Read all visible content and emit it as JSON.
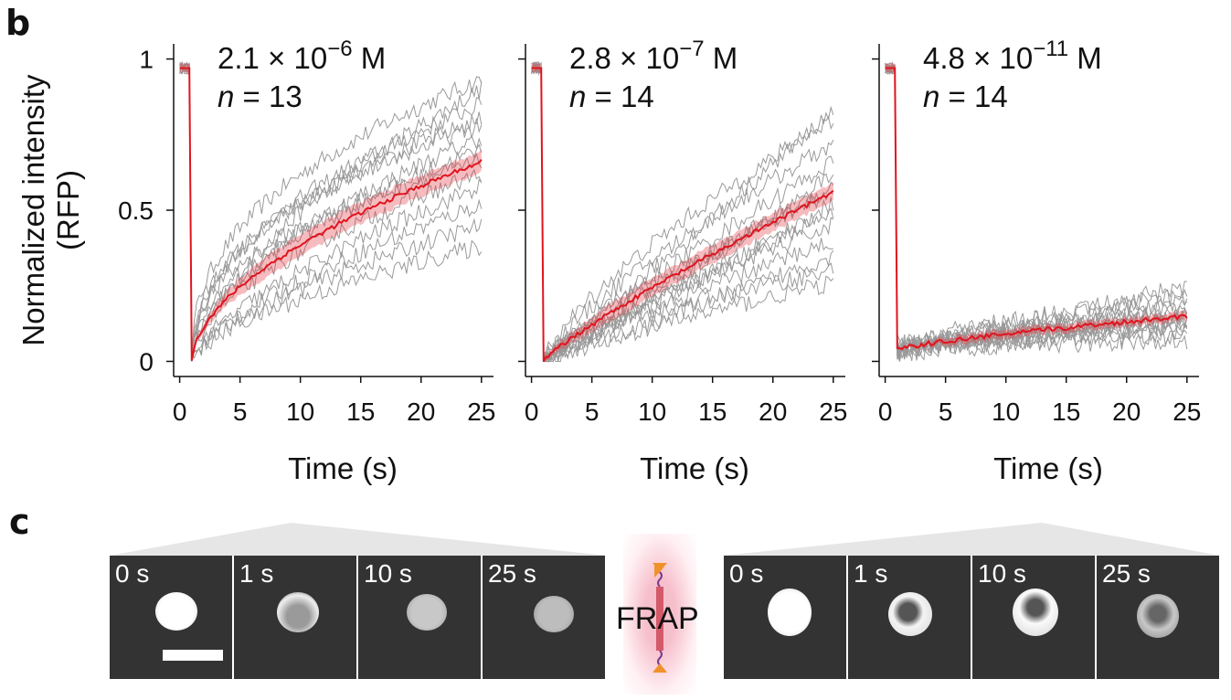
{
  "panel_b_label": "b",
  "panel_c_label": "c",
  "chart_data": [
    {
      "type": "line",
      "concentration_text": "2.1 × 10",
      "concentration_exp": "−6",
      "concentration_unit": " M",
      "n_text": "n",
      "n_value": " = 13",
      "xlabel": "Time (s)",
      "ylabel": [
        "Normalized intensity",
        "(RFP)"
      ],
      "xlim": [
        -0.5,
        26
      ],
      "ylim": [
        -0.05,
        1.05
      ],
      "xticks": [
        0,
        5,
        10,
        15,
        20,
        25
      ],
      "yticks": [
        0,
        0.5,
        1
      ],
      "yticklabels": [
        "0",
        "0.5",
        "1"
      ],
      "prebleach": 0.97,
      "mean_end": 0.66,
      "mean_shape": 0.55,
      "band": 0.035,
      "individual_ends": [
        0.93,
        0.9,
        0.85,
        0.8,
        0.78,
        0.74,
        0.7,
        0.66,
        0.62,
        0.58,
        0.52,
        0.45,
        0.38
      ],
      "mean_color": "#e0141e",
      "trace_color": "#999999"
    },
    {
      "type": "line",
      "concentration_text": "2.8 × 10",
      "concentration_exp": "−7",
      "concentration_unit": " M",
      "n_text": "n",
      "n_value": " = 14",
      "xlabel": "Time (s)",
      "xlim": [
        -0.5,
        26
      ],
      "ylim": [
        -0.05,
        1.05
      ],
      "xticks": [
        0,
        5,
        10,
        15,
        20,
        25
      ],
      "prebleach": 0.97,
      "mean_end": 0.56,
      "mean_shape": 0.85,
      "band": 0.03,
      "individual_ends": [
        0.83,
        0.8,
        0.72,
        0.66,
        0.62,
        0.58,
        0.56,
        0.52,
        0.5,
        0.45,
        0.4,
        0.35,
        0.3,
        0.26
      ],
      "mean_color": "#e0141e",
      "trace_color": "#999999"
    },
    {
      "type": "line",
      "concentration_text": "4.8 × 10",
      "concentration_exp": "−11",
      "concentration_unit": " M",
      "n_text": "n",
      "n_value": " = 14",
      "xlabel": "Time (s)",
      "xlim": [
        -0.5,
        26
      ],
      "ylim": [
        -0.05,
        1.05
      ],
      "xticks": [
        0,
        5,
        10,
        15,
        20,
        25
      ],
      "prebleach": 0.97,
      "mean_end": 0.15,
      "mean_start": 0.04,
      "mean_shape": 0.8,
      "band": 0.015,
      "individual_ends": [
        0.25,
        0.22,
        0.2,
        0.18,
        0.17,
        0.16,
        0.15,
        0.14,
        0.13,
        0.12,
        0.11,
        0.1,
        0.09,
        0.07
      ],
      "mean_color": "#e0141e",
      "trace_color": "#999999"
    }
  ],
  "panel_c": {
    "left_series": [
      {
        "label": "0 s"
      },
      {
        "label": "1 s"
      },
      {
        "label": "10 s"
      },
      {
        "label": "25 s"
      }
    ],
    "center_label": "FRAP",
    "right_series": [
      {
        "label": "0 s"
      },
      {
        "label": "1 s"
      },
      {
        "label": "10 s"
      },
      {
        "label": "25 s"
      }
    ]
  }
}
